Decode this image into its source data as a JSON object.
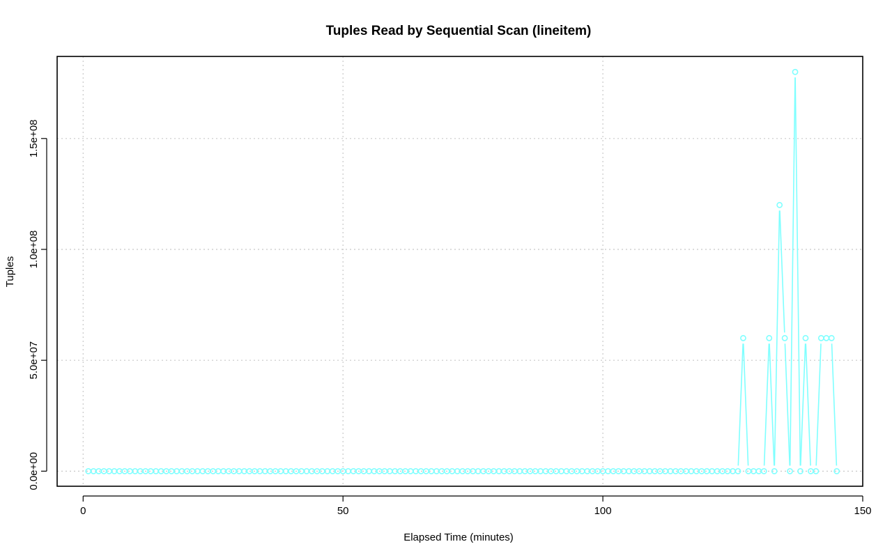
{
  "chart_data": {
    "type": "line",
    "title": "Tuples Read by Sequential Scan (lineitem)",
    "xlabel": "Elapsed Time (minutes)",
    "ylabel": "Tuples",
    "xlim": [
      -5,
      150
    ],
    "ylim": [
      -6800000,
      187000000
    ],
    "xticks": [
      0,
      50,
      100,
      150
    ],
    "xtick_labels": [
      "0",
      "50",
      "100",
      "150"
    ],
    "yticks": [
      0,
      50000000,
      100000000,
      150000000
    ],
    "ytick_labels": [
      "0.0e+00",
      "5.0e+07",
      "1.0e+08",
      "1.5e+08"
    ],
    "grid": true,
    "series": [
      {
        "color": "#7fffff",
        "marker": "open-circle",
        "x": [
          1,
          2,
          3,
          4,
          5,
          6,
          7,
          8,
          9,
          10,
          11,
          12,
          13,
          14,
          15,
          16,
          17,
          18,
          19,
          20,
          21,
          22,
          23,
          24,
          25,
          26,
          27,
          28,
          29,
          30,
          31,
          32,
          33,
          34,
          35,
          36,
          37,
          38,
          39,
          40,
          41,
          42,
          43,
          44,
          45,
          46,
          47,
          48,
          49,
          50,
          51,
          52,
          53,
          54,
          55,
          56,
          57,
          58,
          59,
          60,
          61,
          62,
          63,
          64,
          65,
          66,
          67,
          68,
          69,
          70,
          71,
          72,
          73,
          74,
          75,
          76,
          77,
          78,
          79,
          80,
          81,
          82,
          83,
          84,
          85,
          86,
          87,
          88,
          89,
          90,
          91,
          92,
          93,
          94,
          95,
          96,
          97,
          98,
          99,
          100,
          101,
          102,
          103,
          104,
          105,
          106,
          107,
          108,
          109,
          110,
          111,
          112,
          113,
          114,
          115,
          116,
          117,
          118,
          119,
          120,
          121,
          122,
          123,
          124,
          125,
          126,
          127,
          128,
          129,
          130,
          131,
          132,
          133,
          134,
          135,
          136,
          137,
          138,
          139,
          140,
          141,
          142,
          143,
          144,
          145
        ],
        "y": [
          0,
          0,
          0,
          0,
          0,
          0,
          0,
          0,
          0,
          0,
          0,
          0,
          0,
          0,
          0,
          0,
          0,
          0,
          0,
          0,
          0,
          0,
          0,
          0,
          0,
          0,
          0,
          0,
          0,
          0,
          0,
          0,
          0,
          0,
          0,
          0,
          0,
          0,
          0,
          0,
          0,
          0,
          0,
          0,
          0,
          0,
          0,
          0,
          0,
          0,
          0,
          0,
          0,
          0,
          0,
          0,
          0,
          0,
          0,
          0,
          0,
          0,
          0,
          0,
          0,
          0,
          0,
          0,
          0,
          0,
          0,
          0,
          0,
          0,
          0,
          0,
          0,
          0,
          0,
          0,
          0,
          0,
          0,
          0,
          0,
          0,
          0,
          0,
          0,
          0,
          0,
          0,
          0,
          0,
          0,
          0,
          0,
          0,
          0,
          0,
          0,
          0,
          0,
          0,
          0,
          0,
          0,
          0,
          0,
          0,
          0,
          0,
          0,
          0,
          0,
          0,
          0,
          0,
          0,
          0,
          0,
          0,
          0,
          0,
          0,
          0,
          60000000,
          0,
          0,
          0,
          0,
          60000000,
          0,
          120000000,
          60000000,
          0,
          180000000,
          0,
          60000000,
          0,
          0,
          60000000,
          60000000,
          60000000,
          0
        ]
      }
    ]
  }
}
